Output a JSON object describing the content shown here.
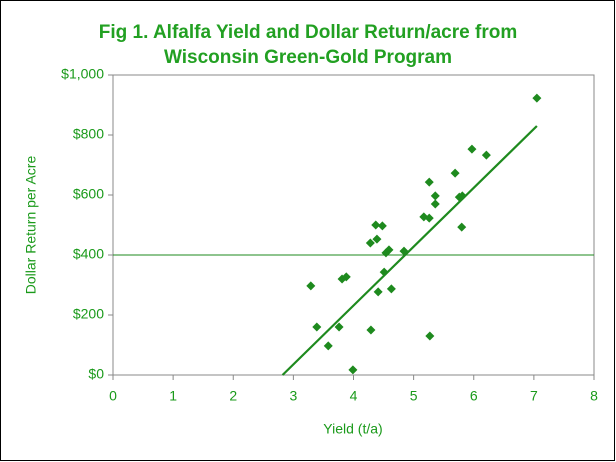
{
  "chart_data": {
    "type": "scatter",
    "title": [
      "Fig 1. Alfalfa Yield and Dollar Return/acre from",
      "Wisconsin Green-Gold Program"
    ],
    "xlabel": "Yield (t/a)",
    "ylabel": "Dollar Return per Acre",
    "x": [
      3.29,
      3.39,
      3.58,
      3.76,
      3.81,
      3.88,
      3.99,
      4.28,
      4.29,
      4.37,
      4.39,
      4.41,
      4.48,
      4.51,
      4.54,
      4.59,
      4.63,
      4.84,
      5.17,
      5.26,
      5.26,
      5.27,
      5.36,
      5.36,
      5.69,
      5.76,
      5.8,
      5.81,
      5.97,
      6.21,
      7.05
    ],
    "values": [
      297,
      160,
      97,
      160,
      320,
      327,
      17,
      440,
      150,
      500,
      453,
      277,
      497,
      343,
      407,
      417,
      287,
      413,
      527,
      523,
      643,
      130,
      597,
      570,
      673,
      593,
      493,
      597,
      753,
      733,
      923
    ],
    "color": "#1e8a1e",
    "trendline": {
      "x": [
        2.82,
        7.05
      ],
      "y": [
        0,
        830
      ]
    },
    "reference_line": 400,
    "xlim": [
      0,
      8
    ],
    "xticks": [
      0,
      1,
      2,
      3,
      4,
      5,
      6,
      7,
      8
    ],
    "ylim": [
      0,
      1000
    ],
    "yticks": [
      {
        "value": 0,
        "label": "$0"
      },
      {
        "value": 200,
        "label": "$200"
      },
      {
        "value": 400,
        "label": "$400"
      },
      {
        "value": 600,
        "label": "$600"
      },
      {
        "value": 800,
        "label": "$800"
      },
      {
        "value": 1000,
        "label": "$1,000"
      }
    ]
  }
}
